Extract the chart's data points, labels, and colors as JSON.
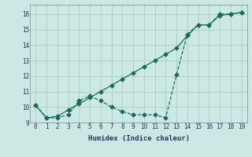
{
  "xlabel": "Humidex (Indice chaleur)",
  "background_color": "#cce8e4",
  "grid_color": "#b0d0cc",
  "line_color": "#1a6b5a",
  "xlim": [
    -0.5,
    19.5
  ],
  "ylim": [
    9.0,
    16.6
  ],
  "yticks": [
    9,
    10,
    11,
    12,
    13,
    14,
    15,
    16
  ],
  "xticks": [
    0,
    1,
    2,
    3,
    4,
    5,
    6,
    7,
    8,
    9,
    10,
    11,
    12,
    13,
    14,
    15,
    16,
    17,
    18,
    19
  ],
  "line1_x": [
    0,
    1,
    2,
    3,
    4,
    5,
    6,
    7,
    8,
    9,
    10,
    11,
    12,
    13,
    14,
    15,
    16,
    17,
    18,
    19
  ],
  "line1_y": [
    10.1,
    9.3,
    9.4,
    9.8,
    10.2,
    10.6,
    11.0,
    11.4,
    11.8,
    12.2,
    12.6,
    13.0,
    13.4,
    13.8,
    14.6,
    15.3,
    15.3,
    15.9,
    16.0,
    16.1
  ],
  "line2_x": [
    0,
    1,
    2,
    3,
    4,
    5,
    6,
    7,
    8,
    9,
    10,
    11,
    12,
    13,
    14,
    15,
    16,
    17,
    18,
    19
  ],
  "line2_y": [
    10.1,
    9.3,
    9.3,
    9.5,
    10.4,
    10.7,
    10.4,
    10.0,
    9.7,
    9.5,
    9.5,
    9.5,
    9.3,
    12.1,
    14.7,
    15.3,
    15.3,
    16.0,
    16.0,
    16.1
  ],
  "marker": "D",
  "marker_size": 2.5,
  "line_width": 0.9
}
